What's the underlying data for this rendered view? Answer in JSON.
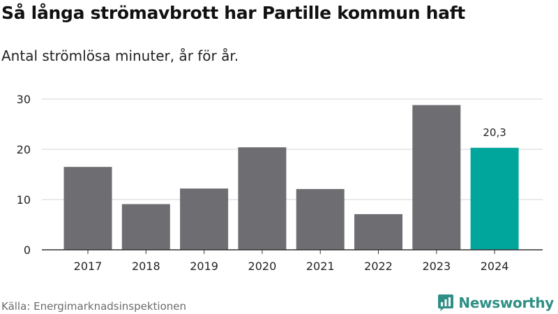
{
  "title": "Så långa strömavbrott har Partille kommun haft",
  "subtitle": "Antal strömlösa minuter, år för år.",
  "source": "Källa: Energimarknadsinspektionen",
  "brand": {
    "name": "Newsworthy",
    "icon": "newsworthy-logo-icon",
    "color": "#2f8f85"
  },
  "chart_data": {
    "type": "bar",
    "categories": [
      "2017",
      "2018",
      "2019",
      "2020",
      "2021",
      "2022",
      "2023",
      "2024"
    ],
    "values": [
      16.5,
      9.1,
      12.2,
      20.4,
      12.1,
      7.1,
      28.8,
      20.3
    ],
    "ylim": [
      0,
      30
    ],
    "yticks": [
      0,
      10,
      20,
      30
    ],
    "grid": true,
    "colors": {
      "default": "#6e6d72",
      "highlight": "#00a59b"
    },
    "highlight_index": 7,
    "data_labels": [
      {
        "index": 7,
        "text": "20,3"
      }
    ]
  }
}
